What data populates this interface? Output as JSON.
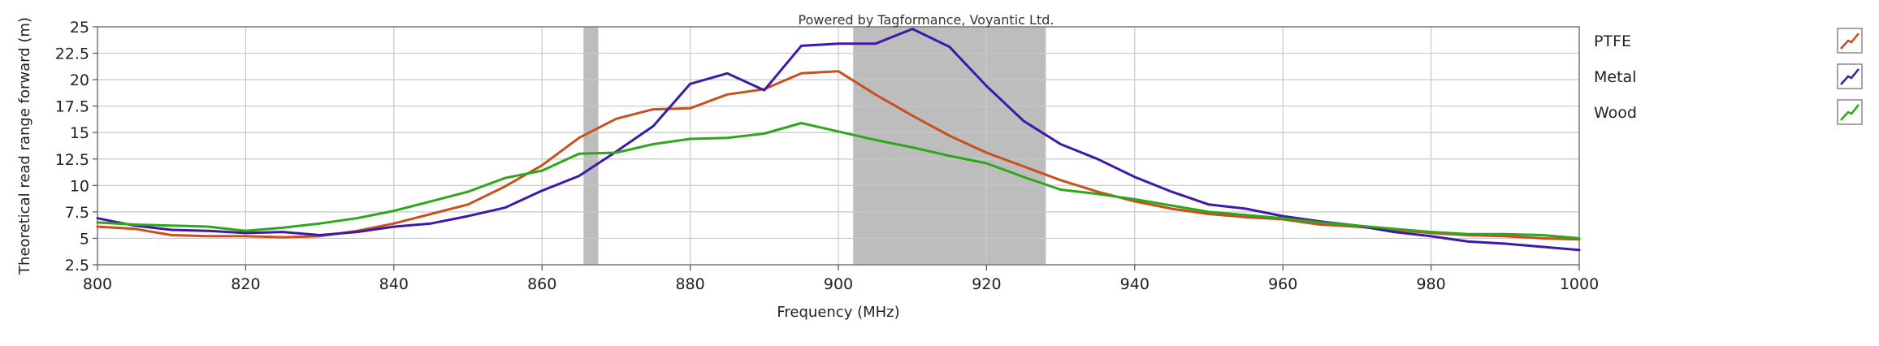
{
  "chart_data": {
    "type": "line",
    "watermark": "Powered by Tagformance, Voyantic Ltd.",
    "xlabel": "Frequency (MHz)",
    "ylabel": "Theoretical read range forward (m)",
    "xlim": [
      800,
      1000
    ],
    "ylim": [
      2.5,
      25
    ],
    "x_ticks": [
      "800",
      "820",
      "840",
      "860",
      "880",
      "900",
      "920",
      "940",
      "960",
      "980",
      "1000"
    ],
    "y_ticks": [
      "2.5",
      "5",
      "7.5",
      "10",
      "12.5",
      "15",
      "17.5",
      "20",
      "22.5",
      "25"
    ],
    "grid": true,
    "legend_position": "right",
    "shaded_bands": [
      {
        "from": 865.6,
        "to": 867.6
      },
      {
        "from": 902,
        "to": 928
      }
    ],
    "series": [
      {
        "name": "PTFE",
        "color": "#c8501e",
        "points": [
          [
            800,
            6.1
          ],
          [
            805,
            5.9
          ],
          [
            810,
            5.3
          ],
          [
            815,
            5.2
          ],
          [
            820,
            5.2
          ],
          [
            825,
            5.1
          ],
          [
            830,
            5.2
          ],
          [
            835,
            5.7
          ],
          [
            840,
            6.4
          ],
          [
            845,
            7.3
          ],
          [
            850,
            8.2
          ],
          [
            855,
            9.9
          ],
          [
            860,
            11.9
          ],
          [
            865,
            14.5
          ],
          [
            870,
            16.3
          ],
          [
            875,
            17.2
          ],
          [
            880,
            17.3
          ],
          [
            885,
            18.6
          ],
          [
            890,
            19.1
          ],
          [
            895,
            20.6
          ],
          [
            900,
            20.8
          ],
          [
            905,
            18.6
          ],
          [
            910,
            16.6
          ],
          [
            915,
            14.7
          ],
          [
            920,
            13.1
          ],
          [
            925,
            11.8
          ],
          [
            930,
            10.5
          ],
          [
            935,
            9.4
          ],
          [
            940,
            8.5
          ],
          [
            945,
            7.8
          ],
          [
            950,
            7.3
          ],
          [
            955,
            7.0
          ],
          [
            960,
            6.8
          ],
          [
            965,
            6.3
          ],
          [
            970,
            6.1
          ],
          [
            975,
            5.8
          ],
          [
            980,
            5.5
          ],
          [
            985,
            5.3
          ],
          [
            990,
            5.2
          ],
          [
            995,
            5.0
          ],
          [
            1000,
            4.9
          ]
        ]
      },
      {
        "name": "Metal",
        "color": "#3d1aa8",
        "points": [
          [
            800,
            6.9
          ],
          [
            805,
            6.2
          ],
          [
            810,
            5.8
          ],
          [
            815,
            5.7
          ],
          [
            820,
            5.5
          ],
          [
            825,
            5.6
          ],
          [
            830,
            5.3
          ],
          [
            835,
            5.6
          ],
          [
            840,
            6.1
          ],
          [
            845,
            6.4
          ],
          [
            850,
            7.1
          ],
          [
            855,
            7.9
          ],
          [
            860,
            9.5
          ],
          [
            865,
            10.9
          ],
          [
            870,
            13.2
          ],
          [
            875,
            15.6
          ],
          [
            880,
            19.6
          ],
          [
            885,
            20.6
          ],
          [
            890,
            19.0
          ],
          [
            895,
            23.2
          ],
          [
            900,
            23.4
          ],
          [
            905,
            23.4
          ],
          [
            910,
            24.8
          ],
          [
            915,
            23.1
          ],
          [
            920,
            19.4
          ],
          [
            925,
            16.1
          ],
          [
            930,
            13.9
          ],
          [
            935,
            12.5
          ],
          [
            940,
            10.8
          ],
          [
            945,
            9.4
          ],
          [
            950,
            8.2
          ],
          [
            955,
            7.8
          ],
          [
            960,
            7.1
          ],
          [
            965,
            6.6
          ],
          [
            970,
            6.2
          ],
          [
            975,
            5.6
          ],
          [
            980,
            5.2
          ],
          [
            985,
            4.7
          ],
          [
            990,
            4.5
          ],
          [
            995,
            4.2
          ],
          [
            1000,
            3.9
          ]
        ]
      },
      {
        "name": "Wood",
        "color": "#2ea81a",
        "points": [
          [
            800,
            6.5
          ],
          [
            805,
            6.3
          ],
          [
            810,
            6.2
          ],
          [
            815,
            6.1
          ],
          [
            820,
            5.7
          ],
          [
            825,
            6.0
          ],
          [
            830,
            6.4
          ],
          [
            835,
            6.9
          ],
          [
            840,
            7.6
          ],
          [
            845,
            8.5
          ],
          [
            850,
            9.4
          ],
          [
            855,
            10.7
          ],
          [
            860,
            11.4
          ],
          [
            865,
            13.0
          ],
          [
            870,
            13.1
          ],
          [
            875,
            13.9
          ],
          [
            880,
            14.4
          ],
          [
            885,
            14.5
          ],
          [
            890,
            14.9
          ],
          [
            895,
            15.9
          ],
          [
            900,
            15.1
          ],
          [
            905,
            14.3
          ],
          [
            910,
            13.6
          ],
          [
            915,
            12.8
          ],
          [
            920,
            12.1
          ],
          [
            925,
            10.8
          ],
          [
            930,
            9.6
          ],
          [
            935,
            9.2
          ],
          [
            940,
            8.7
          ],
          [
            945,
            8.1
          ],
          [
            950,
            7.5
          ],
          [
            955,
            7.2
          ],
          [
            960,
            6.9
          ],
          [
            965,
            6.5
          ],
          [
            970,
            6.2
          ],
          [
            975,
            5.9
          ],
          [
            980,
            5.6
          ],
          [
            985,
            5.4
          ],
          [
            990,
            5.4
          ],
          [
            995,
            5.3
          ],
          [
            1000,
            5.0
          ]
        ]
      }
    ]
  }
}
